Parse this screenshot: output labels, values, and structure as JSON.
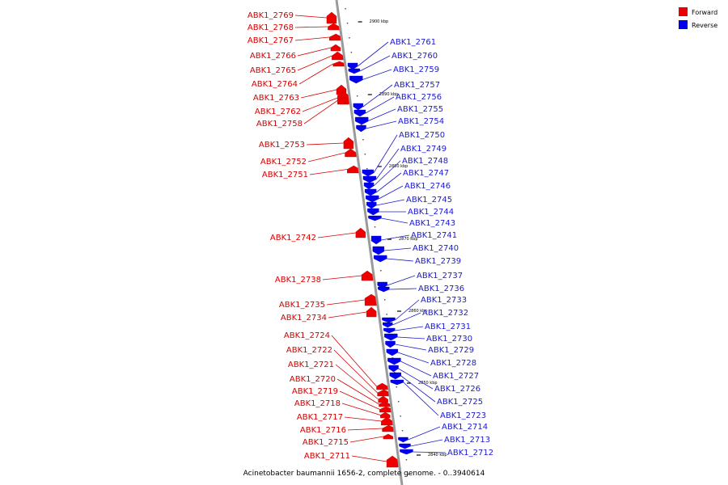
{
  "caption": "Acinetobacter baumannii 1656-2, complete genome. - 0..3940614",
  "legend": [
    {
      "label": "Forward",
      "color": "#ee0000"
    },
    {
      "label": "Reverse",
      "color": "#0000ee"
    }
  ],
  "colors": {
    "forward": "#ee0000",
    "forward_label": "#d40000",
    "reverse": "#0000ee",
    "reverse_label": "#1a1acc",
    "backbone": "#9a9a9a"
  },
  "ticks": [
    "2900 kbp",
    "2890 kbp",
    "2880 kbp",
    "2870 kbp",
    "2860 kbp",
    "2850 kbp",
    "2840 kbp"
  ],
  "forward_genes": [
    "ABK1_2769",
    "ABK1_2768",
    "ABK1_2767",
    "ABK1_2766",
    "ABK1_2765",
    "ABK1_2764",
    "ABK1_2763",
    "ABK1_2762",
    "ABK1_2758",
    "ABK1_2753",
    "ABK1_2752",
    "ABK1_2751",
    "ABK1_2742",
    "ABK1_2738",
    "ABK1_2735",
    "ABK1_2734",
    "ABK1_2724",
    "ABK1_2722",
    "ABK1_2721",
    "ABK1_2720",
    "ABK1_2719",
    "ABK1_2718",
    "ABK1_2717",
    "ABK1_2716",
    "ABK1_2715",
    "ABK1_2711"
  ],
  "reverse_genes": [
    "ABK1_2761",
    "ABK1_2760",
    "ABK1_2759",
    "ABK1_2757",
    "ABK1_2756",
    "ABK1_2755",
    "ABK1_2754",
    "ABK1_2750",
    "ABK1_2749",
    "ABK1_2748",
    "ABK1_2747",
    "ABK1_2746",
    "ABK1_2745",
    "ABK1_2744",
    "ABK1_2743",
    "ABK1_2741",
    "ABK1_2740",
    "ABK1_2739",
    "ABK1_2737",
    "ABK1_2736",
    "ABK1_2733",
    "ABK1_2732",
    "ABK1_2731",
    "ABK1_2730",
    "ABK1_2729",
    "ABK1_2728",
    "ABK1_2727",
    "ABK1_2726",
    "ABK1_2725",
    "ABK1_2723",
    "ABK1_2714",
    "ABK1_2713",
    "ABK1_2712"
  ]
}
